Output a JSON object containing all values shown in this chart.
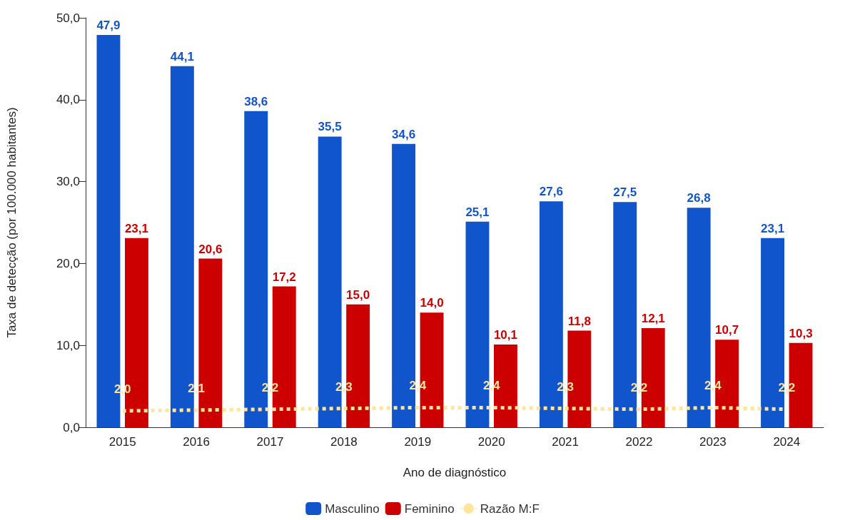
{
  "chart_data": {
    "type": "bar",
    "xlabel": "Ano de diagnóstico",
    "ylabel": "Taxa de detecção (por 100.000 habitantes)",
    "categories": [
      "2015",
      "2016",
      "2017",
      "2018",
      "2019",
      "2020",
      "2021",
      "2022",
      "2023",
      "2024"
    ],
    "series": [
      {
        "name": "Masculino",
        "color": "#1155cc",
        "values": [
          47.9,
          44.1,
          38.6,
          35.5,
          34.6,
          25.1,
          27.6,
          27.5,
          26.8,
          23.1
        ],
        "value_labels": [
          "47,9",
          "44,1",
          "38,6",
          "35,5",
          "34,6",
          "25,1",
          "27,6",
          "27,5",
          "26,8",
          "23,1"
        ]
      },
      {
        "name": "Feminino",
        "color": "#cc0000",
        "values": [
          23.1,
          20.6,
          17.2,
          15.0,
          14.0,
          10.1,
          11.8,
          12.1,
          10.7,
          10.3
        ],
        "value_labels": [
          "23,1",
          "20,6",
          "17,2",
          "15,0",
          "14,0",
          "10,1",
          "11,8",
          "12,1",
          "10,7",
          "10,3"
        ]
      },
      {
        "name": "Razão M:F",
        "type": "line",
        "color": "#ffe599",
        "line_style": "dotted",
        "marker": "none",
        "values": [
          2.0,
          2.1,
          2.2,
          2.3,
          2.4,
          2.4,
          2.3,
          2.2,
          2.4,
          2.2
        ],
        "value_labels": [
          "2,0",
          "2,1",
          "2,2",
          "2,3",
          "2,4",
          "2,4",
          "2,3",
          "2,2",
          "2,4",
          "2,2"
        ]
      }
    ],
    "ylim": [
      0,
      50
    ],
    "yticks": [
      {
        "value": 0,
        "label": "0,0"
      },
      {
        "value": 10,
        "label": "10,0"
      },
      {
        "value": 20,
        "label": "20,0"
      },
      {
        "value": 30,
        "label": "30,0"
      },
      {
        "value": 40,
        "label": "40,0"
      },
      {
        "value": 50,
        "label": "50,0"
      }
    ],
    "grid": false,
    "legend": "bottom"
  }
}
